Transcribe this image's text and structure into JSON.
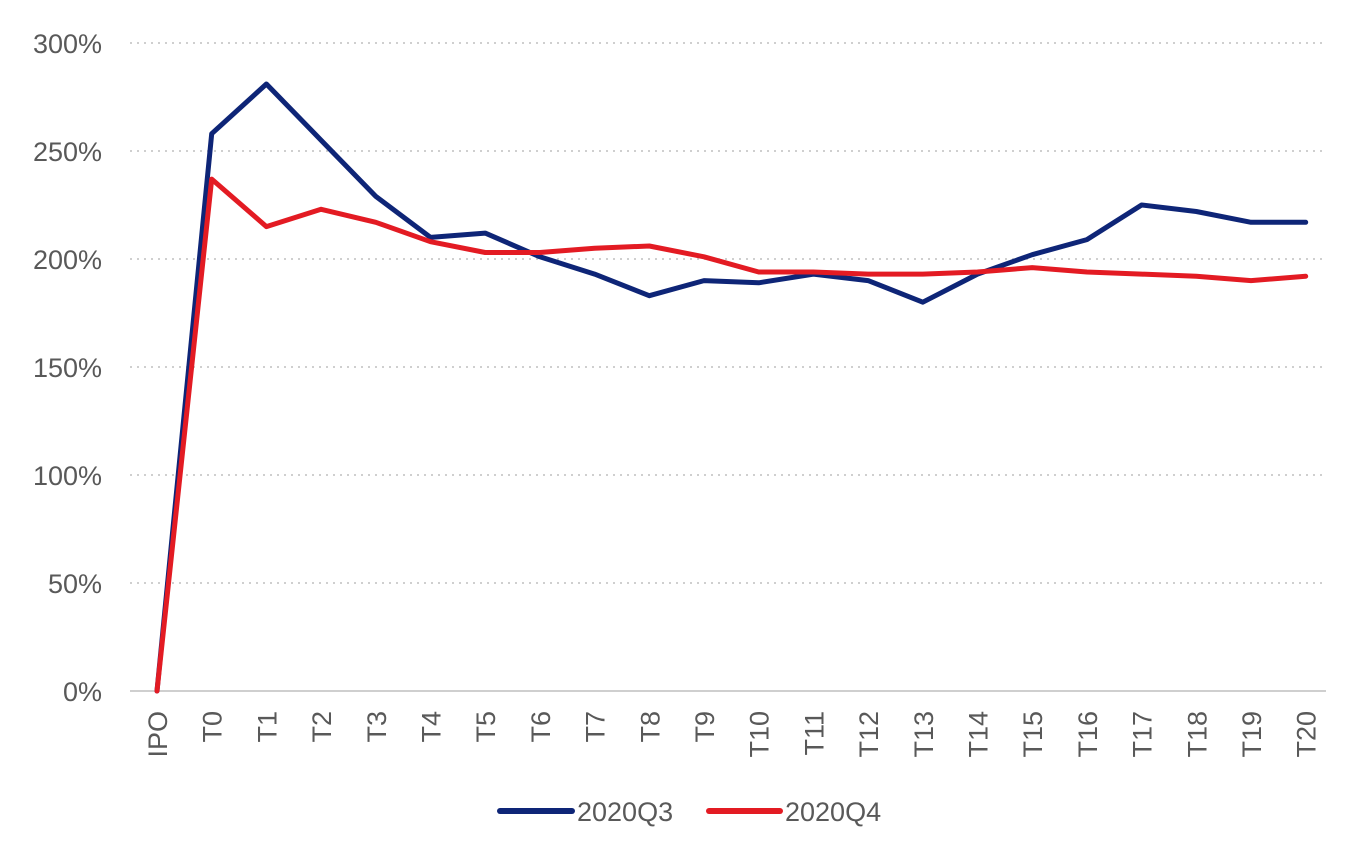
{
  "chart_data": {
    "type": "line",
    "title": "",
    "xlabel": "",
    "ylabel": "",
    "categories": [
      "IPO",
      "T0",
      "T1",
      "T2",
      "T3",
      "T4",
      "T5",
      "T6",
      "T7",
      "T8",
      "T9",
      "T10",
      "T11",
      "T12",
      "T13",
      "T14",
      "T15",
      "T16",
      "T17",
      "T18",
      "T19",
      "T20"
    ],
    "ylim": [
      0,
      300
    ],
    "yticks": [
      0,
      50,
      100,
      150,
      200,
      250,
      300
    ],
    "ytick_labels": [
      "0%",
      "50%",
      "100%",
      "150%",
      "200%",
      "250%",
      "300%"
    ],
    "grid": true,
    "legend_position": "bottom",
    "series": [
      {
        "name": "2020Q3",
        "color": "#0e2577",
        "values": [
          0,
          258,
          281,
          255,
          229,
          210,
          212,
          201,
          193,
          183,
          190,
          189,
          193,
          190,
          180,
          193,
          202,
          209,
          225,
          222,
          217,
          217
        ]
      },
      {
        "name": "2020Q4",
        "color": "#e31b23",
        "values": [
          0,
          237,
          215,
          223,
          217,
          208,
          203,
          203,
          205,
          206,
          201,
          194,
          194,
          193,
          193,
          194,
          196,
          194,
          193,
          192,
          190,
          192
        ]
      }
    ]
  }
}
